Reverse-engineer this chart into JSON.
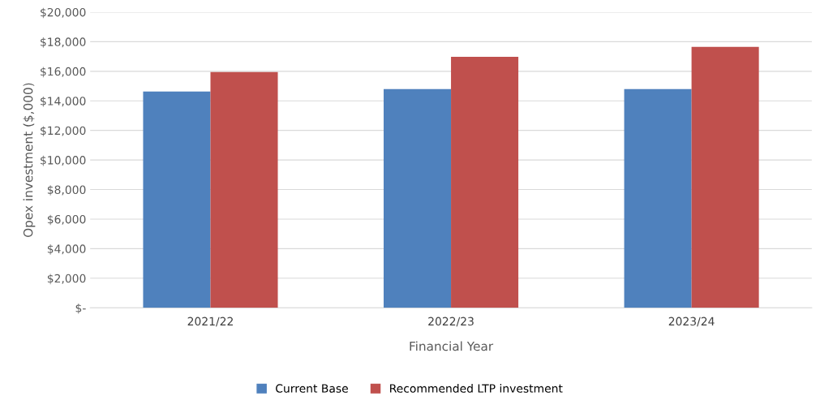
{
  "chart_data": {
    "type": "bar",
    "xlabel": "Financial Year",
    "ylabel": "Opex investment ($,000)",
    "categories": [
      "2021/22",
      "2022/23",
      "2023/24"
    ],
    "series": [
      {
        "name": "Current Base",
        "color": "#4f81bd",
        "values": [
          14630,
          14800,
          14800
        ]
      },
      {
        "name": "Recommended LTP investment",
        "color": "#c0504d",
        "values": [
          15950,
          16980,
          17650
        ]
      }
    ],
    "ylim": [
      0,
      20000
    ],
    "yticks": [
      {
        "value": 0,
        "label": "$-"
      },
      {
        "value": 2000,
        "label": "$2,000"
      },
      {
        "value": 4000,
        "label": "$4,000"
      },
      {
        "value": 6000,
        "label": "$6,000"
      },
      {
        "value": 8000,
        "label": "$8,000"
      },
      {
        "value": 10000,
        "label": "$10,000"
      },
      {
        "value": 12000,
        "label": "$12,000"
      },
      {
        "value": 14000,
        "label": "$14,000"
      },
      {
        "value": 16000,
        "label": "$16,000"
      },
      {
        "value": 18000,
        "label": "$18,000"
      },
      {
        "value": 20000,
        "label": "$20,000"
      }
    ],
    "grid": "y",
    "legend": "bottom"
  }
}
